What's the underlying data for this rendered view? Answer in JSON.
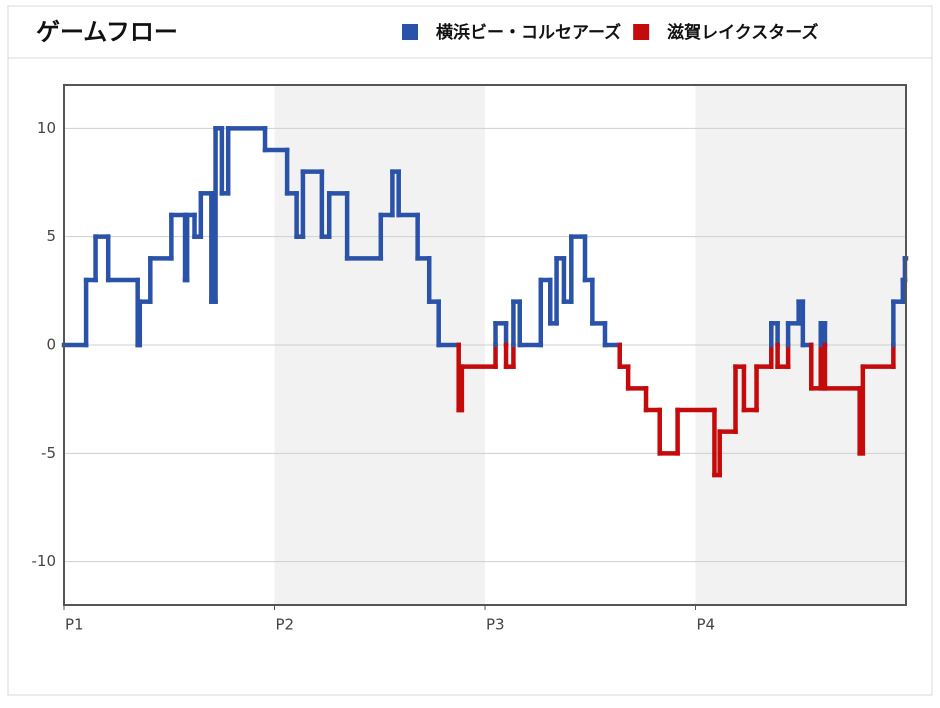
{
  "chart_data": {
    "type": "step",
    "title": "ゲームフロー",
    "series": [
      {
        "name": "横浜ビー・コルセアーズ",
        "color": "#2a52a8"
      },
      {
        "name": "滋賀レイクスターズ",
        "color": "#c40a0a"
      }
    ],
    "x": [
      0,
      1.05,
      1.5,
      2.1,
      3.5,
      3.6,
      4.1,
      5.1,
      5.75,
      5.85,
      6.2,
      6.5,
      7.0,
      7.2,
      7.5,
      7.8,
      9.55,
      10.6,
      11.05,
      11.35,
      12.25,
      12.6,
      13.45,
      15.05,
      15.6,
      15.9,
      16.8,
      17.35,
      17.8,
      18.75,
      18.9,
      20.5,
      21.0,
      21.35,
      21.65,
      22.65,
      23.1,
      23.4,
      23.75,
      24.1,
      24.75,
      25.1,
      25.7,
      26.4,
      26.8,
      27.65,
      28.3,
      29.15,
      30.9,
      31.15,
      31.9,
      32.3,
      32.9,
      33.6,
      33.9,
      34.4,
      34.9,
      35.1,
      35.5,
      35.95,
      36.15,
      37.8,
      37.95,
      39.4,
      39.85,
      39.95
    ],
    "values": [
      0,
      3,
      5,
      3,
      0,
      2,
      4,
      6,
      3,
      6,
      5,
      7,
      2,
      10,
      7,
      10,
      9,
      7,
      5,
      8,
      5,
      7,
      4,
      6,
      8,
      6,
      4,
      2,
      0,
      -3,
      -1,
      1,
      -1,
      2,
      0,
      3,
      1,
      4,
      2,
      5,
      3,
      1,
      0,
      -1,
      -2,
      -3,
      -5,
      -3,
      -6,
      -4,
      -1,
      -3,
      -1,
      1,
      -1,
      1,
      2,
      0,
      -2,
      1,
      -2,
      -5,
      -1,
      2,
      3,
      4
    ],
    "xlim": [
      0,
      40
    ],
    "xticks": [
      {
        "value": 0,
        "label": "P1"
      },
      {
        "value": 10,
        "label": "P2"
      },
      {
        "value": 20,
        "label": "P3"
      },
      {
        "value": 30,
        "label": "P4"
      }
    ],
    "ylim": [
      -12,
      12
    ],
    "yticks": [
      -10,
      -5,
      0,
      5,
      10
    ],
    "grid": true,
    "alternate_shading": true
  }
}
